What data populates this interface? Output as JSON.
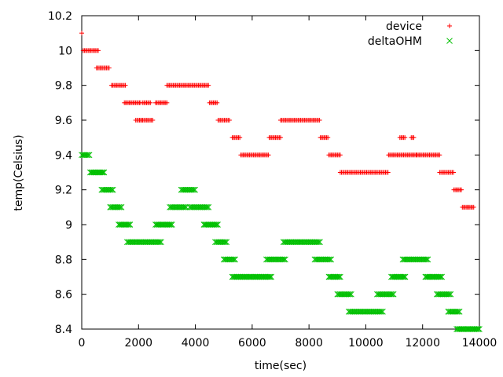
{
  "chart_data": {
    "type": "scatter",
    "title": "",
    "xlabel": "time(sec)",
    "ylabel": "temp(Celsius)",
    "xlim": [
      0,
      14000
    ],
    "ylim": [
      8.4,
      10.2
    ],
    "xticks": [
      0,
      2000,
      4000,
      6000,
      8000,
      10000,
      12000,
      14000
    ],
    "xtick_labels": [
      "0",
      "2000",
      "4000",
      "6000",
      "8000",
      "10000",
      "12000",
      "14000"
    ],
    "yticks": [
      8.4,
      8.6,
      8.8,
      9.0,
      9.2,
      9.4,
      9.6,
      9.8,
      10.0,
      10.2
    ],
    "ytick_labels": [
      "8.4",
      "8.6",
      "8.8",
      "9",
      "9.2",
      "9.4",
      "9.6",
      "9.8",
      "10",
      "10.2"
    ],
    "grid": false,
    "legend_position": "top-right",
    "series": [
      {
        "name": "device",
        "marker": "plus",
        "color": "#ff0000",
        "segments": [
          {
            "x0": 0,
            "x1": 40,
            "y": 10.1
          },
          {
            "x0": 50,
            "x1": 600,
            "y": 10.0
          },
          {
            "x0": 520,
            "x1": 1000,
            "y": 9.9
          },
          {
            "x0": 1050,
            "x1": 1550,
            "y": 9.8
          },
          {
            "x0": 1500,
            "x1": 2100,
            "y": 9.7
          },
          {
            "x0": 1900,
            "x1": 2100,
            "y": 9.6
          },
          {
            "x0": 2100,
            "x1": 2500,
            "y": 9.6
          },
          {
            "x0": 2150,
            "x1": 2450,
            "y": 9.7
          },
          {
            "x0": 2600,
            "x1": 3000,
            "y": 9.7
          },
          {
            "x0": 3000,
            "x1": 4500,
            "y": 9.8
          },
          {
            "x0": 4500,
            "x1": 4800,
            "y": 9.7
          },
          {
            "x0": 4800,
            "x1": 5200,
            "y": 9.6
          },
          {
            "x0": 5300,
            "x1": 5600,
            "y": 9.5
          },
          {
            "x0": 5600,
            "x1": 6600,
            "y": 9.4
          },
          {
            "x0": 6600,
            "x1": 7000,
            "y": 9.5
          },
          {
            "x0": 7000,
            "x1": 8400,
            "y": 9.6
          },
          {
            "x0": 8400,
            "x1": 8700,
            "y": 9.5
          },
          {
            "x0": 8700,
            "x1": 9100,
            "y": 9.4
          },
          {
            "x0": 9100,
            "x1": 10800,
            "y": 9.3
          },
          {
            "x0": 10800,
            "x1": 11800,
            "y": 9.4
          },
          {
            "x0": 11200,
            "x1": 11400,
            "y": 9.5
          },
          {
            "x0": 11600,
            "x1": 11700,
            "y": 9.5
          },
          {
            "x0": 11800,
            "x1": 12600,
            "y": 9.4
          },
          {
            "x0": 12600,
            "x1": 13100,
            "y": 9.3
          },
          {
            "x0": 13100,
            "x1": 13400,
            "y": 9.2
          },
          {
            "x0": 13400,
            "x1": 13800,
            "y": 9.1
          }
        ]
      },
      {
        "name": "deltaOHM",
        "marker": "cross",
        "color": "#00c000",
        "segments": [
          {
            "x0": 0,
            "x1": 300,
            "y": 9.4
          },
          {
            "x0": 300,
            "x1": 800,
            "y": 9.3
          },
          {
            "x0": 700,
            "x1": 1100,
            "y": 9.2
          },
          {
            "x0": 1000,
            "x1": 1400,
            "y": 9.1
          },
          {
            "x0": 1300,
            "x1": 1700,
            "y": 9.0
          },
          {
            "x0": 1600,
            "x1": 2800,
            "y": 8.9
          },
          {
            "x0": 2600,
            "x1": 3200,
            "y": 9.0
          },
          {
            "x0": 3100,
            "x1": 3700,
            "y": 9.1
          },
          {
            "x0": 3500,
            "x1": 4000,
            "y": 9.2
          },
          {
            "x0": 3800,
            "x1": 4500,
            "y": 9.1
          },
          {
            "x0": 4300,
            "x1": 4800,
            "y": 9.0
          },
          {
            "x0": 4700,
            "x1": 5100,
            "y": 8.9
          },
          {
            "x0": 5000,
            "x1": 5400,
            "y": 8.8
          },
          {
            "x0": 5300,
            "x1": 6700,
            "y": 8.7
          },
          {
            "x0": 6500,
            "x1": 7200,
            "y": 8.8
          },
          {
            "x0": 7100,
            "x1": 8400,
            "y": 8.9
          },
          {
            "x0": 8200,
            "x1": 8800,
            "y": 8.8
          },
          {
            "x0": 8700,
            "x1": 9100,
            "y": 8.7
          },
          {
            "x0": 9000,
            "x1": 9500,
            "y": 8.6
          },
          {
            "x0": 9400,
            "x1": 10600,
            "y": 8.5
          },
          {
            "x0": 10400,
            "x1": 11000,
            "y": 8.6
          },
          {
            "x0": 10900,
            "x1": 11400,
            "y": 8.7
          },
          {
            "x0": 11300,
            "x1": 12200,
            "y": 8.8
          },
          {
            "x0": 12100,
            "x1": 12700,
            "y": 8.7
          },
          {
            "x0": 12500,
            "x1": 13000,
            "y": 8.6
          },
          {
            "x0": 12900,
            "x1": 13300,
            "y": 8.5
          },
          {
            "x0": 13200,
            "x1": 14000,
            "y": 8.4
          }
        ]
      }
    ]
  }
}
